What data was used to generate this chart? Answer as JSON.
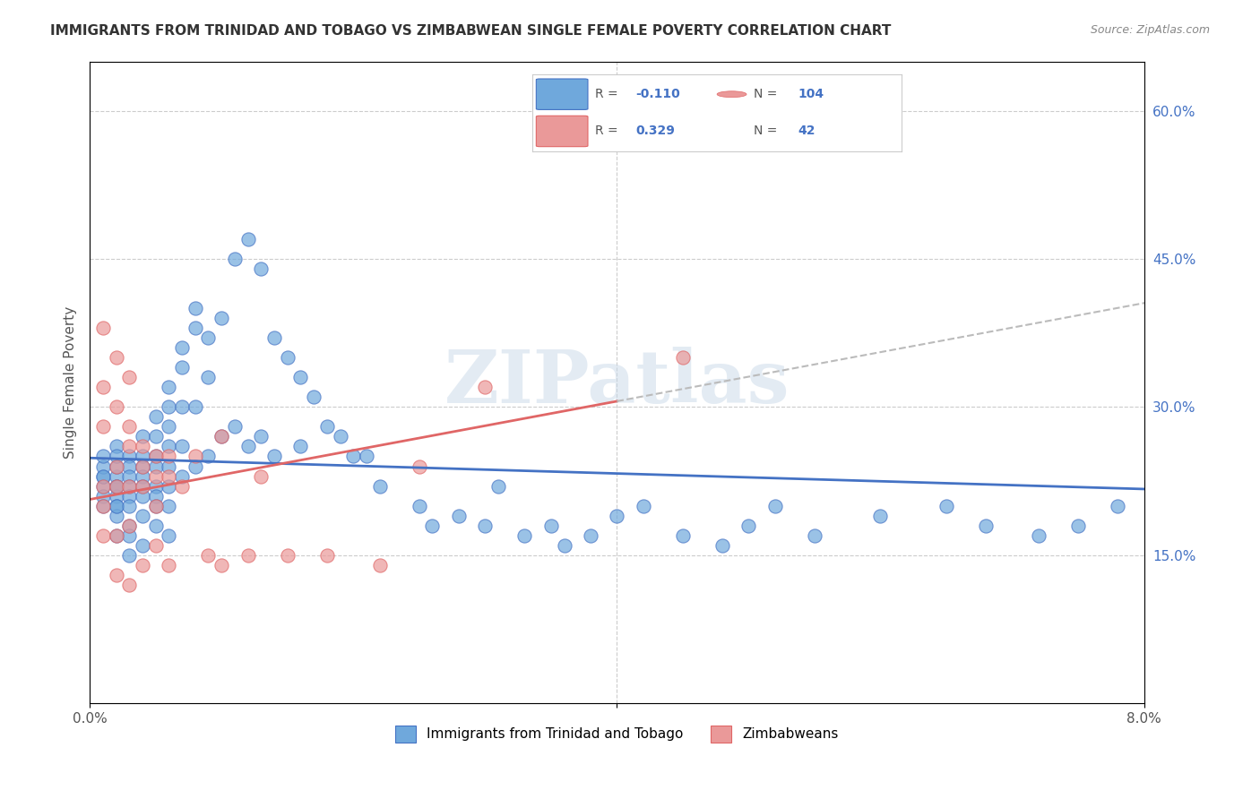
{
  "title": "IMMIGRANTS FROM TRINIDAD AND TOBAGO VS ZIMBABWEAN SINGLE FEMALE POVERTY CORRELATION CHART",
  "source": "Source: ZipAtlas.com",
  "xlabel": "",
  "ylabel": "Single Female Poverty",
  "r_blue": -0.11,
  "n_blue": 104,
  "r_pink": 0.329,
  "n_pink": 42,
  "legend_label_blue": "Immigrants from Trinidad and Tobago",
  "legend_label_pink": "Zimbabweans",
  "xlim": [
    0.0,
    0.08
  ],
  "ylim": [
    0.0,
    0.65
  ],
  "x_ticks": [
    0.0,
    0.08
  ],
  "x_tick_labels": [
    "0.0%",
    "8.0%"
  ],
  "y_ticks_right": [
    0.15,
    0.3,
    0.45,
    0.6
  ],
  "y_tick_labels_right": [
    "15.0%",
    "30.0%",
    "45.0%",
    "60.0%"
  ],
  "watermark": "ZIPatlas",
  "background_color": "#ffffff",
  "blue_color": "#6fa8dc",
  "pink_color": "#ea9999",
  "blue_line_color": "#4472c4",
  "pink_line_color": "#e06666",
  "grid_color": "#cccccc",
  "blue_scatter_x": [
    0.001,
    0.001,
    0.001,
    0.001,
    0.001,
    0.001,
    0.001,
    0.002,
    0.002,
    0.002,
    0.002,
    0.002,
    0.002,
    0.002,
    0.002,
    0.002,
    0.002,
    0.002,
    0.003,
    0.003,
    0.003,
    0.003,
    0.003,
    0.003,
    0.003,
    0.003,
    0.003,
    0.004,
    0.004,
    0.004,
    0.004,
    0.004,
    0.004,
    0.004,
    0.004,
    0.005,
    0.005,
    0.005,
    0.005,
    0.005,
    0.005,
    0.005,
    0.005,
    0.006,
    0.006,
    0.006,
    0.006,
    0.006,
    0.006,
    0.006,
    0.006,
    0.007,
    0.007,
    0.007,
    0.007,
    0.007,
    0.008,
    0.008,
    0.008,
    0.008,
    0.009,
    0.009,
    0.009,
    0.01,
    0.01,
    0.011,
    0.011,
    0.012,
    0.012,
    0.013,
    0.013,
    0.014,
    0.014,
    0.015,
    0.016,
    0.016,
    0.017,
    0.018,
    0.019,
    0.02,
    0.021,
    0.022,
    0.025,
    0.026,
    0.028,
    0.03,
    0.031,
    0.033,
    0.035,
    0.036,
    0.038,
    0.04,
    0.042,
    0.045,
    0.048,
    0.05,
    0.052,
    0.055,
    0.06,
    0.065,
    0.068,
    0.072,
    0.075,
    0.078
  ],
  "blue_scatter_y": [
    0.23,
    0.24,
    0.25,
    0.22,
    0.21,
    0.23,
    0.2,
    0.26,
    0.23,
    0.24,
    0.22,
    0.21,
    0.2,
    0.19,
    0.17,
    0.25,
    0.22,
    0.2,
    0.25,
    0.24,
    0.23,
    0.22,
    0.21,
    0.2,
    0.18,
    0.17,
    0.15,
    0.27,
    0.25,
    0.24,
    0.23,
    0.22,
    0.21,
    0.19,
    0.16,
    0.29,
    0.27,
    0.25,
    0.24,
    0.22,
    0.21,
    0.2,
    0.18,
    0.32,
    0.3,
    0.28,
    0.26,
    0.24,
    0.22,
    0.2,
    0.17,
    0.36,
    0.34,
    0.3,
    0.26,
    0.23,
    0.4,
    0.38,
    0.3,
    0.24,
    0.37,
    0.33,
    0.25,
    0.39,
    0.27,
    0.45,
    0.28,
    0.47,
    0.26,
    0.44,
    0.27,
    0.37,
    0.25,
    0.35,
    0.33,
    0.26,
    0.31,
    0.28,
    0.27,
    0.25,
    0.25,
    0.22,
    0.2,
    0.18,
    0.19,
    0.18,
    0.22,
    0.17,
    0.18,
    0.16,
    0.17,
    0.19,
    0.2,
    0.17,
    0.16,
    0.18,
    0.2,
    0.17,
    0.19,
    0.2,
    0.18,
    0.17,
    0.18,
    0.2
  ],
  "pink_scatter_x": [
    0.001,
    0.001,
    0.001,
    0.001,
    0.001,
    0.001,
    0.002,
    0.002,
    0.002,
    0.002,
    0.002,
    0.002,
    0.003,
    0.003,
    0.003,
    0.003,
    0.003,
    0.003,
    0.004,
    0.004,
    0.004,
    0.004,
    0.005,
    0.005,
    0.005,
    0.005,
    0.006,
    0.006,
    0.006,
    0.007,
    0.008,
    0.009,
    0.01,
    0.01,
    0.012,
    0.013,
    0.015,
    0.018,
    0.022,
    0.025,
    0.03,
    0.045
  ],
  "pink_scatter_y": [
    0.38,
    0.32,
    0.28,
    0.22,
    0.2,
    0.17,
    0.35,
    0.3,
    0.24,
    0.22,
    0.17,
    0.13,
    0.33,
    0.28,
    0.26,
    0.22,
    0.18,
    0.12,
    0.26,
    0.24,
    0.22,
    0.14,
    0.25,
    0.23,
    0.2,
    0.16,
    0.25,
    0.23,
    0.14,
    0.22,
    0.25,
    0.15,
    0.27,
    0.14,
    0.15,
    0.23,
    0.15,
    0.15,
    0.14,
    0.24,
    0.32,
    0.35
  ]
}
